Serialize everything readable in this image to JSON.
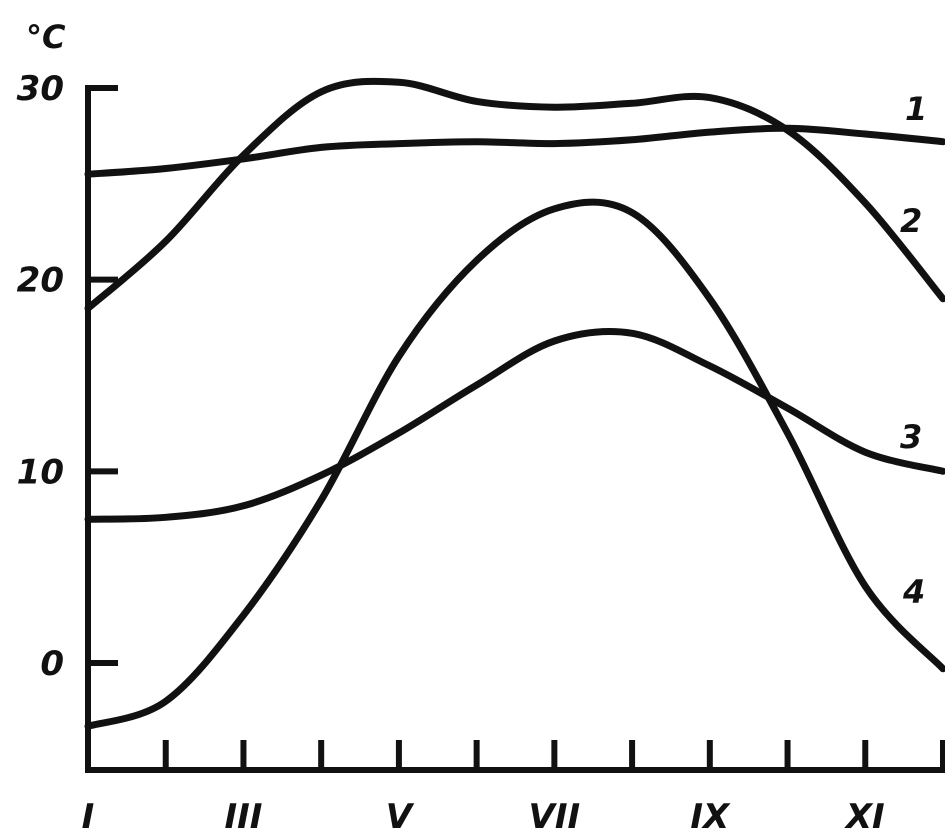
{
  "chart_data": {
    "type": "line",
    "ylabel": "°C",
    "y_ticks": [
      "0",
      "10",
      "20",
      "30"
    ],
    "y_tick_values": [
      0,
      10,
      20,
      30
    ],
    "x_tick_labels": [
      "I",
      "III",
      "V",
      "VII",
      "IX",
      "XI"
    ],
    "x_tick_label_months": [
      1,
      3,
      5,
      7,
      9,
      11
    ],
    "xlim": [
      1,
      12
    ],
    "ylim": [
      -5.5,
      30
    ],
    "months": [
      1,
      2,
      3,
      4,
      5,
      6,
      7,
      8,
      9,
      10,
      11,
      12
    ],
    "series": [
      {
        "name": "1",
        "values": [
          25.5,
          25.8,
          26.3,
          26.9,
          27.1,
          27.2,
          27.1,
          27.3,
          27.7,
          27.9,
          27.6,
          27.2
        ]
      },
      {
        "name": "2",
        "values": [
          18.5,
          22.0,
          26.5,
          29.8,
          30.3,
          29.3,
          29.0,
          29.2,
          29.5,
          27.8,
          24.0,
          19.0
        ]
      },
      {
        "name": "3",
        "values": [
          7.5,
          7.6,
          8.2,
          9.8,
          12.0,
          14.5,
          16.8,
          17.2,
          15.5,
          13.3,
          11.0,
          10.0
        ]
      },
      {
        "name": "4",
        "values": [
          -3.3,
          -2.0,
          2.5,
          8.5,
          16.0,
          21.0,
          23.7,
          23.5,
          19.0,
          12.0,
          4.0,
          -0.3
        ]
      }
    ]
  }
}
